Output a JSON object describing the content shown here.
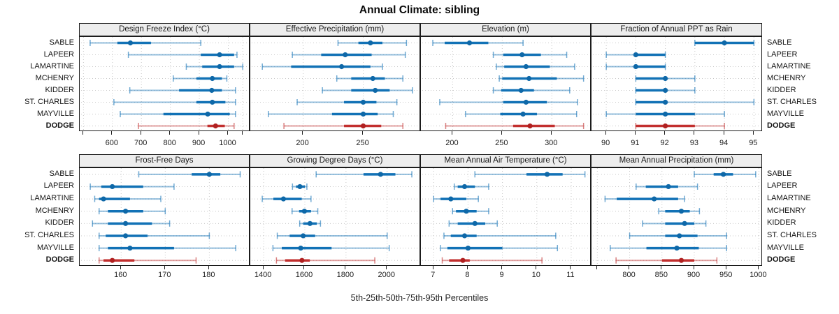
{
  "title": "Annual Climate: sibling",
  "caption": "5th-25th-50th-75th-95th Percentiles",
  "sites": [
    "SABLE",
    "LAPEER",
    "LAMARTINE",
    "MCHENRY",
    "KIDDER",
    "ST. CHARLES",
    "MAYVILLE",
    "DODGE"
  ],
  "highlight_site": "DODGE",
  "percentiles": [
    "5th",
    "25th",
    "50th",
    "75th",
    "95th"
  ],
  "colors": {
    "series": "#1272b6",
    "series_dot": "#0e68a8",
    "highlight": "#c22f2e",
    "highlight_dot": "#b02020",
    "grid": "#c8c8c8",
    "strip_bg": "#ededed",
    "border": "#1c1c1c"
  },
  "chart_data": [
    {
      "type": "dotplot",
      "title": "Design Freeze Index (°C)",
      "row": 0,
      "col": 0,
      "xlim": [
        487,
        1076
      ],
      "ticks": [
        {
          "v": 500,
          "label": ""
        },
        {
          "v": 600,
          "label": "600"
        },
        {
          "v": 700,
          "label": "700"
        },
        {
          "v": 800,
          "label": "800"
        },
        {
          "v": 900,
          "label": "900"
        },
        {
          "v": 1000,
          "label": "1000"
        },
        {
          "v": 1050,
          "label": ""
        }
      ],
      "series": [
        [
          523,
          617,
          662,
          733,
          905
        ],
        [
          655,
          905,
          970,
          1020,
          1030
        ],
        [
          855,
          910,
          970,
          1020,
          1050
        ],
        [
          810,
          890,
          945,
          978,
          995
        ],
        [
          660,
          830,
          943,
          978,
          1025
        ],
        [
          605,
          890,
          945,
          990,
          1025
        ],
        [
          627,
          776,
          929,
          1005,
          1025
        ],
        [
          690,
          928,
          956,
          988,
          1020
        ]
      ]
    },
    {
      "type": "dotplot",
      "title": "Effective Precipitation (mm)",
      "row": 0,
      "col": 1,
      "xlim": [
        156,
        298
      ],
      "ticks": [
        {
          "v": 200,
          "label": "200"
        },
        {
          "v": 250,
          "label": "250"
        }
      ],
      "series": [
        [
          229,
          246,
          256,
          266,
          286
        ],
        [
          191,
          215,
          235,
          257,
          285
        ],
        [
          166,
          190,
          232,
          256,
          266
        ],
        [
          228,
          240,
          258,
          268,
          283
        ],
        [
          216,
          240,
          260,
          272,
          291
        ],
        [
          195,
          234,
          250,
          261,
          278
        ],
        [
          171,
          224,
          250,
          262,
          275
        ],
        [
          184,
          234,
          250,
          265,
          283
        ]
      ]
    },
    {
      "type": "dotplot",
      "title": "Elevation (m)",
      "row": 0,
      "col": 2,
      "xlim": [
        168,
        340
      ],
      "ticks": [
        {
          "v": 200,
          "label": "200"
        },
        {
          "v": 250,
          "label": "250"
        },
        {
          "v": 300,
          "label": "300"
        }
      ],
      "series": [
        [
          180,
          192,
          217,
          236,
          271
        ],
        [
          241,
          251,
          270,
          289,
          315
        ],
        [
          244,
          252,
          274,
          298,
          323
        ],
        [
          247,
          250,
          277,
          305,
          332
        ],
        [
          241,
          249,
          269,
          282,
          318
        ],
        [
          187,
          251,
          274,
          295,
          326
        ],
        [
          213,
          248,
          271,
          285,
          325
        ],
        [
          193,
          261,
          278,
          303,
          332
        ]
      ]
    },
    {
      "type": "dotplot",
      "title": "Fraction of Annual PPT as Rain",
      "row": 0,
      "col": 3,
      "xlim": [
        89.5,
        95.3
      ],
      "ticks": [
        {
          "v": 90,
          "label": "90"
        },
        {
          "v": 91,
          "label": "91"
        },
        {
          "v": 92,
          "label": "92"
        },
        {
          "v": 93,
          "label": "93"
        },
        {
          "v": 94,
          "label": "94"
        },
        {
          "v": 95,
          "label": "95"
        }
      ],
      "series": [
        [
          93,
          93,
          94,
          95,
          95
        ],
        [
          90,
          91,
          91,
          92,
          92
        ],
        [
          90,
          91,
          91,
          92,
          92
        ],
        [
          91,
          91,
          92,
          92,
          93
        ],
        [
          91,
          91,
          92,
          92,
          93
        ],
        [
          91,
          91,
          92,
          92,
          95
        ],
        [
          90,
          91,
          92,
          93,
          94
        ],
        [
          91,
          91,
          92,
          93,
          94
        ]
      ]
    },
    {
      "type": "dotplot",
      "title": "Frost-Free Days",
      "row": 1,
      "col": 0,
      "xlim": [
        150.6,
        189.3
      ],
      "ticks": [
        {
          "v": 160,
          "label": "160"
        },
        {
          "v": 170,
          "label": "170"
        },
        {
          "v": 180,
          "label": "180"
        }
      ],
      "series": [
        [
          164,
          176,
          180,
          182.5,
          187
        ],
        [
          153,
          155.5,
          158,
          165,
          172
        ],
        [
          154,
          155,
          156,
          162,
          169
        ],
        [
          155,
          157,
          161,
          165,
          170
        ],
        [
          153.5,
          157,
          161,
          167,
          171
        ],
        [
          155,
          156.5,
          161,
          166,
          180
        ],
        [
          155,
          157,
          162,
          172,
          186
        ],
        [
          155,
          156,
          158,
          163,
          177
        ]
      ]
    },
    {
      "type": "dotplot",
      "title": "Growing Degree Days (°C)",
      "row": 1,
      "col": 1,
      "xlim": [
        1335,
        2164
      ],
      "ticks": [
        {
          "v": 1400,
          "label": "1400"
        },
        {
          "v": 1600,
          "label": "1600"
        },
        {
          "v": 1800,
          "label": "1800"
        },
        {
          "v": 2000,
          "label": "2000"
        }
      ],
      "series": [
        [
          1655,
          1885,
          1968,
          2040,
          2120
        ],
        [
          1540,
          1557,
          1576,
          1600,
          1610
        ],
        [
          1393,
          1447,
          1496,
          1585,
          1630
        ],
        [
          1538,
          1572,
          1598,
          1630,
          1663
        ],
        [
          1575,
          1592,
          1625,
          1658,
          1676
        ],
        [
          1466,
          1526,
          1592,
          1650,
          2000
        ],
        [
          1445,
          1488,
          1580,
          1730,
          2010
        ],
        [
          1462,
          1504,
          1586,
          1624,
          1940
        ]
      ]
    },
    {
      "type": "dotplot",
      "title": "Mean Annual Air Temperature (°C)",
      "row": 1,
      "col": 2,
      "xlim": [
        6.63,
        11.59
      ],
      "ticks": [
        {
          "v": 7,
          "label": "7"
        },
        {
          "v": 8,
          "label": "8"
        },
        {
          "v": 9,
          "label": "9"
        },
        {
          "v": 10,
          "label": "10"
        },
        {
          "v": 11,
          "label": "11"
        }
      ],
      "series": [
        [
          8.2,
          9.7,
          10.3,
          10.75,
          11.4
        ],
        [
          7.6,
          7.7,
          7.9,
          8.2,
          8.6
        ],
        [
          7.0,
          7.2,
          7.5,
          7.95,
          8.3
        ],
        [
          7.55,
          7.65,
          7.95,
          8.25,
          8.6
        ],
        [
          7.45,
          7.7,
          8.2,
          8.5,
          8.85
        ],
        [
          7.3,
          7.5,
          7.9,
          8.25,
          10.55
        ],
        [
          7.2,
          7.4,
          8.0,
          9.0,
          10.6
        ],
        [
          7.25,
          7.45,
          7.85,
          8.05,
          10.15
        ]
      ]
    },
    {
      "type": "dotplot",
      "title": "Mean Annual Precipitation (mm)",
      "row": 1,
      "col": 3,
      "xlim": [
        741,
        1006
      ],
      "ticks": [
        {
          "v": 750,
          "label": ""
        },
        {
          "v": 800,
          "label": "800"
        },
        {
          "v": 850,
          "label": "850"
        },
        {
          "v": 900,
          "label": "900"
        },
        {
          "v": 950,
          "label": "950"
        },
        {
          "v": 1000,
          "label": "1000"
        }
      ],
      "series": [
        [
          900,
          930,
          945,
          960,
          995
        ],
        [
          810,
          825,
          860,
          875,
          905
        ],
        [
          762,
          780,
          838,
          875,
          885
        ],
        [
          845,
          855,
          880,
          893,
          908
        ],
        [
          820,
          855,
          885,
          900,
          918
        ],
        [
          800,
          855,
          877,
          905,
          950
        ],
        [
          770,
          826,
          873,
          907,
          950
        ],
        [
          779,
          850,
          880,
          900,
          935
        ]
      ]
    }
  ]
}
